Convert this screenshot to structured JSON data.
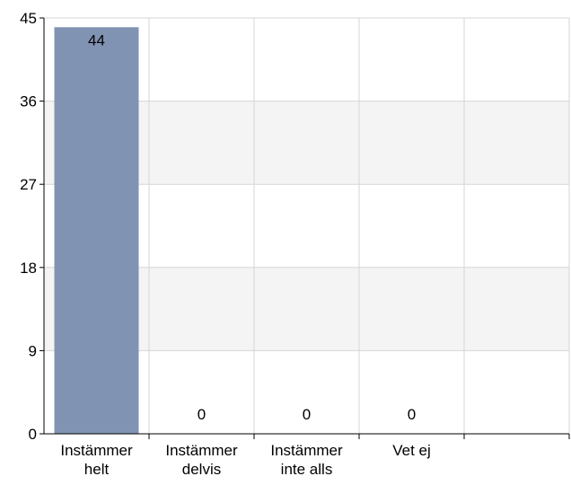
{
  "chart_data": {
    "type": "bar",
    "title": "",
    "xlabel": "",
    "ylabel": "",
    "categories": [
      [
        "Instämmer",
        "helt"
      ],
      [
        "Instämmer",
        "delvis"
      ],
      [
        "Instämmer",
        "inte alls"
      ],
      [
        "Vet ej"
      ]
    ],
    "values": [
      44,
      0,
      0,
      0
    ],
    "data_labels": [
      "44",
      "0",
      "0",
      "0"
    ],
    "ylim": [
      0,
      45
    ],
    "yticks": [
      "0",
      "9",
      "18",
      "27",
      "36",
      "45"
    ],
    "grid": true,
    "legend": "none",
    "colors": {
      "bar": "#8193b2",
      "band": "#f4f4f4",
      "grid": "#d6d6d6",
      "axis": "#000000"
    }
  }
}
